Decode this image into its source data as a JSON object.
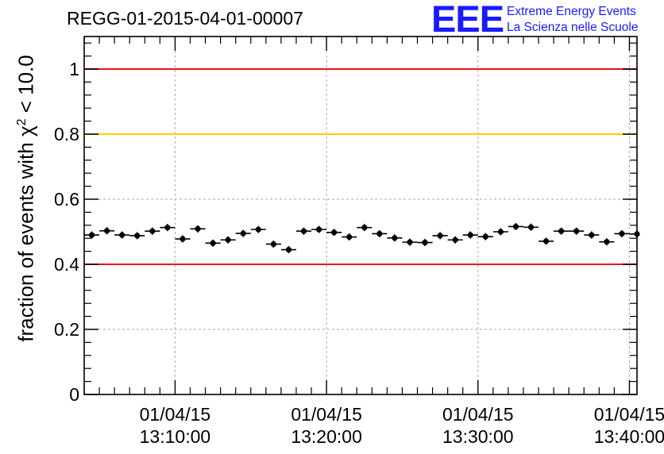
{
  "chart_data": {
    "type": "scatter",
    "title": "REGG-01-2015-04-01-00007",
    "ylabel_prefix": "fraction of events with ",
    "ylabel_symbol": "χ",
    "ylabel_exp": "2",
    "ylabel_suffix": " < 10.0",
    "xlabel": "",
    "x_axis": "time",
    "xlim": [
      "01/04/15 13:04:00",
      "01/04/15 13:40:30"
    ],
    "ylim": [
      0,
      1.1
    ],
    "y_ticks": [
      0,
      0.2,
      0.4,
      0.6,
      0.8,
      1
    ],
    "y_tick_labels": [
      "0",
      "0.2",
      "0.4",
      "0.6",
      "0.8",
      "1"
    ],
    "x_ticks": [
      "01/04/15 13:10:00",
      "01/04/15 13:20:00",
      "01/04/15 13:30:00",
      "01/04/15 13:40:00"
    ],
    "x_tick_labels": [
      {
        "date": "01/04/15",
        "time": "13:10:00"
      },
      {
        "date": "01/04/15",
        "time": "13:20:00"
      },
      {
        "date": "01/04/15",
        "time": "13:30:00"
      },
      {
        "date": "01/04/15",
        "time": "13:40:00"
      }
    ],
    "grid": true,
    "reference_lines": [
      {
        "y": 1.0,
        "color": "#e8141b"
      },
      {
        "y": 0.8,
        "color": "#ffcc00"
      },
      {
        "y": 0.4,
        "color": "#e8141b"
      }
    ],
    "x_bin_width_seconds": 60,
    "points": [
      {
        "x": "13:04:30",
        "y": 0.49,
        "err": 0.011
      },
      {
        "x": "13:05:30",
        "y": 0.503,
        "err": 0.011
      },
      {
        "x": "13:06:30",
        "y": 0.49,
        "err": 0.011
      },
      {
        "x": "13:07:30",
        "y": 0.488,
        "err": 0.011
      },
      {
        "x": "13:08:30",
        "y": 0.502,
        "err": 0.011
      },
      {
        "x": "13:09:30",
        "y": 0.513,
        "err": 0.011
      },
      {
        "x": "13:10:30",
        "y": 0.478,
        "err": 0.011
      },
      {
        "x": "13:11:30",
        "y": 0.509,
        "err": 0.011
      },
      {
        "x": "13:12:30",
        "y": 0.465,
        "err": 0.011
      },
      {
        "x": "13:13:30",
        "y": 0.475,
        "err": 0.011
      },
      {
        "x": "13:14:30",
        "y": 0.495,
        "err": 0.011
      },
      {
        "x": "13:15:30",
        "y": 0.507,
        "err": 0.011
      },
      {
        "x": "13:16:30",
        "y": 0.462,
        "err": 0.011
      },
      {
        "x": "13:17:30",
        "y": 0.445,
        "err": 0.011
      },
      {
        "x": "13:18:30",
        "y": 0.502,
        "err": 0.011
      },
      {
        "x": "13:19:30",
        "y": 0.507,
        "err": 0.011
      },
      {
        "x": "13:20:30",
        "y": 0.498,
        "err": 0.011
      },
      {
        "x": "13:21:30",
        "y": 0.484,
        "err": 0.011
      },
      {
        "x": "13:22:30",
        "y": 0.513,
        "err": 0.011
      },
      {
        "x": "13:23:30",
        "y": 0.494,
        "err": 0.011
      },
      {
        "x": "13:24:30",
        "y": 0.481,
        "err": 0.011
      },
      {
        "x": "13:25:30",
        "y": 0.468,
        "err": 0.011
      },
      {
        "x": "13:26:30",
        "y": 0.467,
        "err": 0.011
      },
      {
        "x": "13:27:30",
        "y": 0.488,
        "err": 0.011
      },
      {
        "x": "13:28:30",
        "y": 0.475,
        "err": 0.011
      },
      {
        "x": "13:29:30",
        "y": 0.49,
        "err": 0.011
      },
      {
        "x": "13:30:30",
        "y": 0.485,
        "err": 0.011
      },
      {
        "x": "13:31:30",
        "y": 0.5,
        "err": 0.011
      },
      {
        "x": "13:32:30",
        "y": 0.516,
        "err": 0.011
      },
      {
        "x": "13:33:30",
        "y": 0.514,
        "err": 0.011
      },
      {
        "x": "13:34:30",
        "y": 0.471,
        "err": 0.011
      },
      {
        "x": "13:35:30",
        "y": 0.502,
        "err": 0.011
      },
      {
        "x": "13:36:30",
        "y": 0.502,
        "err": 0.011
      },
      {
        "x": "13:37:30",
        "y": 0.49,
        "err": 0.011
      },
      {
        "x": "13:38:30",
        "y": 0.469,
        "err": 0.011
      },
      {
        "x": "13:39:30",
        "y": 0.494,
        "err": 0.011
      },
      {
        "x": "13:40:30",
        "y": 0.493,
        "err": 0.011
      }
    ]
  },
  "logo": {
    "mark": "EEE",
    "line1": "Extreme Energy Events",
    "line2": "La Scienza nelle Scuole"
  }
}
